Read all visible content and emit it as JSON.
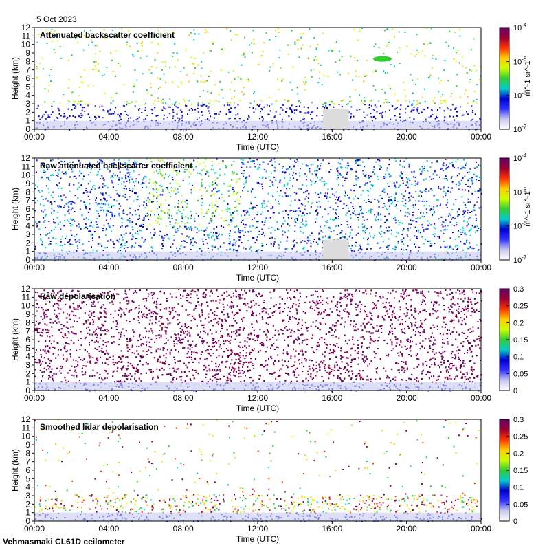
{
  "date_label": "5 Oct 2023",
  "footer_label": "Vehmasmaki CL61D ceilometer",
  "colors": {
    "background_data": "#ffffff",
    "nodata": "#dcdcdc",
    "axis": "#000000",
    "colormap": [
      "#ffffff",
      "#c8c8f0",
      "#3333ff",
      "#0000cc",
      "#00cccc",
      "#33cc33",
      "#ccff00",
      "#ffcc00",
      "#ff3300",
      "#990033",
      "#660066"
    ]
  },
  "chart_data": [
    {
      "type": "heatmap",
      "title": "Attenuated backscatter coefficient",
      "xlabel": "Time (UTC)",
      "ylabel": "Height (km)",
      "xticks": [
        "00:00",
        "04:00",
        "08:00",
        "12:00",
        "16:00",
        "20:00",
        "00:00"
      ],
      "yticks": [
        "0",
        "1",
        "2",
        "3",
        "4",
        "5",
        "6",
        "7",
        "8",
        "9",
        "10",
        "11",
        "12"
      ],
      "xlim_hours": [
        0,
        24
      ],
      "ylim": [
        0,
        12
      ],
      "colorbar": {
        "scale": "log",
        "ticks": [
          "10^-7",
          "10^-6",
          "10^-5",
          "10^-4"
        ],
        "label": "m^-1 sr^-1"
      },
      "features": [
        {
          "what": "aerosol layer (blue)",
          "from_h": 0,
          "to_h": 24,
          "top_km": 3
        },
        {
          "what": "no-data gap",
          "from_h": 15.5,
          "to_h": 16.9
        },
        {
          "what": "elevated layer (green)",
          "from_h": 18.2,
          "to_h": 19.2,
          "height_km": 8.3
        }
      ]
    },
    {
      "type": "heatmap",
      "title": "Raw attenuated backscatter coefficient",
      "xlabel": "Time (UTC)",
      "ylabel": "Height (km)",
      "xticks": [
        "00:00",
        "04:00",
        "08:00",
        "12:00",
        "16:00",
        "20:00",
        "00:00"
      ],
      "yticks": [
        "0",
        "1",
        "2",
        "3",
        "4",
        "5",
        "6",
        "7",
        "8",
        "9",
        "10",
        "11",
        "12"
      ],
      "xlim_hours": [
        0,
        24
      ],
      "ylim": [
        0,
        12
      ],
      "colorbar": {
        "scale": "log",
        "ticks": [
          "10^-7",
          "10^-6",
          "10^-5",
          "10^-4"
        ],
        "label": "m^-1 sr^-1"
      }
    },
    {
      "type": "heatmap",
      "title": "Raw depolarisation",
      "xlabel": "Time (UTC)",
      "ylabel": "Height (km)",
      "xticks": [
        "00:00",
        "04:00",
        "08:00",
        "12:00",
        "16:00",
        "20:00",
        "00:00"
      ],
      "yticks": [
        "0",
        "1",
        "2",
        "3",
        "4",
        "5",
        "6",
        "7",
        "8",
        "9",
        "10",
        "11",
        "12"
      ],
      "xlim_hours": [
        0,
        24
      ],
      "ylim": [
        0,
        12
      ],
      "colorbar": {
        "scale": "linear",
        "ticks": [
          "0",
          "0.05",
          "0.1",
          "0.15",
          "0.2",
          "0.25",
          "0.3"
        ]
      }
    },
    {
      "type": "heatmap",
      "title": "Smoothed lidar depolarisation",
      "xlabel": "Time (UTC)",
      "ylabel": "Height (km)",
      "xticks": [
        "00:00",
        "04:00",
        "08:00",
        "12:00",
        "16:00",
        "20:00",
        "00:00"
      ],
      "yticks": [
        "0",
        "1",
        "2",
        "3",
        "4",
        "5",
        "6",
        "7",
        "8",
        "9",
        "10",
        "11",
        "12"
      ],
      "xlim_hours": [
        0,
        24
      ],
      "ylim": [
        0,
        12
      ],
      "colorbar": {
        "scale": "linear",
        "ticks": [
          "0",
          "0.05",
          "0.1",
          "0.15",
          "0.2",
          "0.25",
          "0.3"
        ]
      }
    }
  ]
}
